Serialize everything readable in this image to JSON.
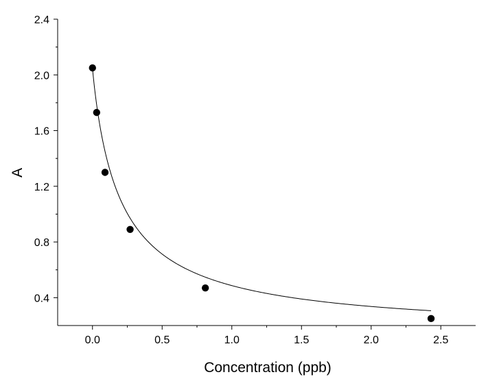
{
  "chart_data": {
    "type": "scatter",
    "title": "",
    "xlabel": "Concentration (ppb)",
    "ylabel": "A",
    "xlim": [
      -0.25,
      2.75
    ],
    "ylim": [
      0.2,
      2.4
    ],
    "x_ticks": [
      0.0,
      0.5,
      1.0,
      1.5,
      2.0,
      2.5
    ],
    "x_tick_labels": [
      "0.0",
      "0.5",
      "1.0",
      "1.5",
      "2.0",
      "2.5"
    ],
    "y_ticks": [
      0.4,
      0.8,
      1.2,
      1.6,
      2.0,
      2.4
    ],
    "y_tick_labels": [
      "0.4",
      "0.8",
      "1.2",
      "1.6",
      "2.0",
      "2.4"
    ],
    "grid": false,
    "legend": "none",
    "series": [
      {
        "x": [
          0.0,
          0.03,
          0.09,
          0.27,
          0.81,
          2.43
        ],
        "y": [
          2.05,
          1.73,
          1.3,
          0.89,
          0.47,
          0.25
        ],
        "marker": "filled-circle",
        "color": "#000000"
      }
    ],
    "fit_curve": {
      "type": "four-parameter-logistic",
      "color": "#000000"
    }
  }
}
